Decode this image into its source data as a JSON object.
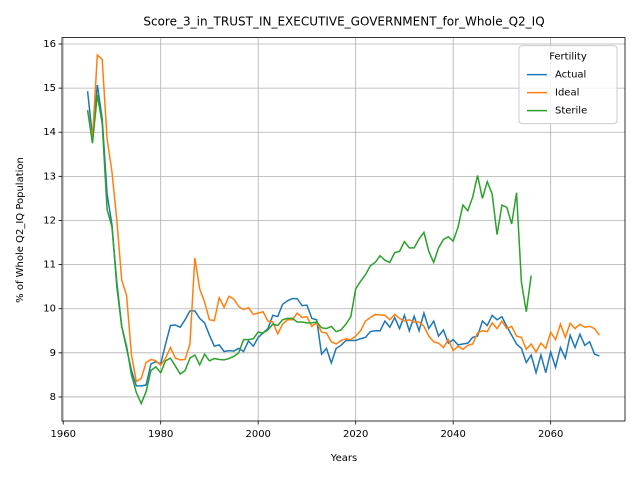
{
  "chart_data": {
    "type": "line",
    "title": "Score_3_in_TRUST_IN_EXECUTIVE_GOVERNMENT_for_Whole_Q2_IQ",
    "xlabel": "Years",
    "ylabel": "% of Whole Q2_IQ Population",
    "legend_title": "Fertility",
    "legend_loc": "upper right",
    "grid": true,
    "xlim": [
      1959.75,
      2075.25
    ],
    "ylim": [
      7.455,
      16.145
    ],
    "xticks": [
      1960,
      1980,
      2000,
      2020,
      2040,
      2060
    ],
    "yticks": [
      8,
      9,
      10,
      11,
      12,
      13,
      14,
      15,
      16
    ],
    "x": [
      1965,
      1966,
      1967,
      1968,
      1969,
      1970,
      1971,
      1972,
      1973,
      1974,
      1975,
      1976,
      1977,
      1978,
      1979,
      1980,
      1981,
      1982,
      1983,
      1984,
      1985,
      1986,
      1987,
      1988,
      1989,
      1990,
      1991,
      1992,
      1993,
      1994,
      1995,
      1996,
      1997,
      1998,
      1999,
      2000,
      2001,
      2002,
      2003,
      2004,
      2005,
      2006,
      2007,
      2008,
      2009,
      2010,
      2011,
      2012,
      2013,
      2014,
      2015,
      2016,
      2017,
      2018,
      2019,
      2020,
      2021,
      2022,
      2023,
      2024,
      2025,
      2026,
      2027,
      2028,
      2029,
      2030,
      2031,
      2032,
      2033,
      2034,
      2035,
      2036,
      2037,
      2038,
      2039,
      2040,
      2041,
      2042,
      2043,
      2044,
      2045,
      2046,
      2047,
      2048,
      2049,
      2050,
      2051,
      2052,
      2053,
      2054,
      2055,
      2056,
      2057,
      2058,
      2059,
      2060,
      2061,
      2062,
      2063,
      2064,
      2065,
      2066,
      2067,
      2068,
      2069,
      2070
    ],
    "series": [
      {
        "name": "Actual",
        "color": "#1f77b4",
        "values": [
          14.93,
          13.9,
          15.07,
          14.3,
          12.6,
          11.9,
          10.5,
          9.6,
          9.1,
          8.6,
          8.25,
          8.25,
          8.27,
          8.75,
          8.8,
          8.75,
          9.2,
          9.62,
          9.63,
          9.58,
          9.75,
          9.95,
          9.95,
          9.78,
          9.68,
          9.4,
          9.15,
          9.18,
          9.03,
          9.05,
          9.04,
          9.1,
          9.03,
          9.27,
          9.15,
          9.35,
          9.45,
          9.55,
          9.85,
          9.82,
          10.1,
          10.18,
          10.23,
          10.23,
          10.07,
          10.08,
          9.78,
          9.75,
          8.97,
          9.1,
          8.77,
          9.1,
          9.17,
          9.28,
          9.28,
          9.28,
          9.32,
          9.35,
          9.48,
          9.5,
          9.5,
          9.72,
          9.58,
          9.8,
          9.55,
          9.85,
          9.5,
          9.83,
          9.5,
          9.9,
          9.55,
          9.72,
          9.38,
          9.52,
          9.22,
          9.3,
          9.18,
          9.2,
          9.22,
          9.35,
          9.38,
          9.72,
          9.62,
          9.85,
          9.75,
          9.82,
          9.6,
          9.4,
          9.2,
          9.1,
          8.78,
          8.95,
          8.55,
          8.95,
          8.55,
          9.02,
          8.67,
          9.12,
          8.88,
          9.4,
          9.12,
          9.42,
          9.17,
          9.25,
          8.97,
          8.93
        ]
      },
      {
        "name": "Ideal",
        "color": "#ff7f0e",
        "values": [
          14.5,
          13.85,
          15.75,
          15.65,
          13.85,
          13.1,
          12.0,
          10.65,
          10.3,
          8.95,
          8.35,
          8.42,
          8.78,
          8.85,
          8.82,
          8.72,
          8.88,
          9.12,
          8.88,
          8.84,
          8.85,
          9.2,
          11.15,
          10.45,
          10.15,
          9.75,
          9.73,
          10.25,
          10.03,
          10.28,
          10.22,
          10.05,
          9.98,
          10.02,
          9.87,
          9.9,
          9.93,
          9.72,
          9.7,
          9.43,
          9.65,
          9.75,
          9.75,
          9.9,
          9.8,
          9.82,
          9.6,
          9.68,
          9.47,
          9.45,
          9.25,
          9.2,
          9.28,
          9.32,
          9.3,
          9.38,
          9.5,
          9.72,
          9.8,
          9.87,
          9.86,
          9.85,
          9.75,
          9.87,
          9.78,
          9.72,
          9.75,
          9.7,
          9.7,
          9.6,
          9.38,
          9.25,
          9.22,
          9.12,
          9.3,
          9.05,
          9.15,
          9.08,
          9.17,
          9.2,
          9.45,
          9.5,
          9.48,
          9.68,
          9.55,
          9.72,
          9.55,
          9.6,
          9.38,
          9.35,
          9.08,
          9.2,
          9.02,
          9.22,
          9.1,
          9.47,
          9.3,
          9.65,
          9.35,
          9.67,
          9.55,
          9.65,
          9.58,
          9.6,
          9.55,
          9.4
        ]
      },
      {
        "name": "Sterile",
        "color": "#2ca02c",
        "values": [
          14.5,
          13.75,
          14.85,
          14.2,
          12.25,
          11.85,
          10.6,
          9.6,
          9.15,
          8.5,
          8.1,
          7.85,
          8.12,
          8.6,
          8.68,
          8.55,
          8.82,
          8.88,
          8.7,
          8.52,
          8.6,
          8.88,
          8.95,
          8.73,
          8.97,
          8.82,
          8.87,
          8.85,
          8.84,
          8.87,
          8.92,
          9.0,
          9.3,
          9.3,
          9.32,
          9.47,
          9.45,
          9.52,
          9.65,
          9.62,
          9.75,
          9.78,
          9.78,
          9.7,
          9.7,
          9.68,
          9.68,
          9.7,
          9.57,
          9.55,
          9.6,
          9.48,
          9.52,
          9.65,
          9.82,
          10.45,
          10.62,
          10.77,
          10.97,
          11.05,
          11.2,
          11.1,
          11.05,
          11.27,
          11.3,
          11.52,
          11.38,
          11.38,
          11.58,
          11.73,
          11.3,
          11.05,
          11.38,
          11.57,
          11.63,
          11.53,
          11.85,
          12.35,
          12.22,
          12.53,
          13.02,
          12.5,
          12.88,
          12.6,
          11.68,
          12.35,
          12.3,
          11.92,
          12.63,
          10.6,
          9.93,
          10.75,
          null,
          null,
          null,
          null,
          null,
          null,
          null,
          null,
          null,
          null,
          null,
          null,
          null,
          null
        ]
      }
    ]
  }
}
